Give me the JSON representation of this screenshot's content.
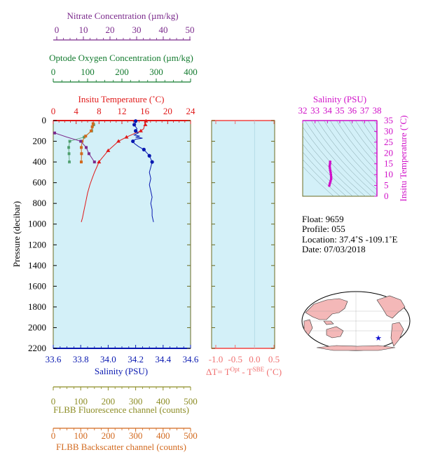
{
  "colors": {
    "nitrate": "#7b2a8c",
    "oxygen": "#127a2e",
    "temperature": "#e01818",
    "salinity": "#0818b0",
    "fluorescence": "#8c8c24",
    "backscatter": "#d2691e",
    "plot_bg": "#d3f0f8",
    "magenta": "#d010c8",
    "dt_axis": "#f07070"
  },
  "nitrate_axis": {
    "title": "Nitrate Concentration (µm/kg)",
    "ticks": [
      "0",
      "10",
      "20",
      "30",
      "40",
      "50"
    ]
  },
  "oxygen_axis": {
    "title": "Optode Oxygen Concentration (µm/kg)",
    "ticks": [
      "0",
      "100",
      "200",
      "300",
      "400"
    ]
  },
  "temperature_axis": {
    "title": "Insitu Temperature (˚C)",
    "ticks": [
      "0",
      "4",
      "8",
      "12",
      "16",
      "20",
      "24"
    ]
  },
  "salinity_axis": {
    "title": "Salinity (PSU)",
    "ticks": [
      "33.6",
      "33.8",
      "34.0",
      "34.2",
      "34.4",
      "34.6"
    ]
  },
  "pressure_axis": {
    "title": "Pressure (decibar)",
    "ticks": [
      "0",
      "200",
      "400",
      "600",
      "800",
      "1000",
      "1200",
      "1400",
      "1600",
      "1800",
      "2000",
      "2200"
    ]
  },
  "fluorescence_axis": {
    "title": "FLBB Fluorescence channel (counts)",
    "ticks": [
      "0",
      "100",
      "200",
      "300",
      "400",
      "500"
    ]
  },
  "backscatter_axis": {
    "title": "FLBB Backscatter channel (counts)",
    "ticks": [
      "0",
      "100",
      "200",
      "300",
      "400",
      "500"
    ]
  },
  "dt_axis": {
    "title_main": "ΔT= T",
    "sup1": "Opt",
    "title_mid": " - T",
    "sup2": "SBE",
    "title_end": " (˚C)",
    "ticks": [
      "-1.0",
      "-0.5",
      "0.0",
      "0.5"
    ]
  },
  "ts_axis": {
    "x_title": "Salinity (PSU)",
    "x_ticks": [
      "32",
      "33",
      "34",
      "35",
      "36",
      "37",
      "38"
    ],
    "y_title": "Insitu Temperature (˚C)",
    "y_ticks": [
      "0",
      "5",
      "10",
      "15",
      "20",
      "25",
      "30",
      "35"
    ]
  },
  "info": {
    "float": "Float:  9659",
    "profile": "Profile:  055",
    "location": "Location:  37.4˚S  -109.1˚E",
    "date": "Date:  07/03/2018"
  },
  "chart_data": [
    {
      "type": "line",
      "name": "profile",
      "y_axis": "Pressure (decibar)",
      "ylim": [
        2200,
        0
      ],
      "series": [
        {
          "name": "Temperature",
          "axis": "Insitu Temperature (˚C)",
          "xlim": [
            0,
            24
          ],
          "points": [
            [
              16.2,
              5
            ],
            [
              16.1,
              20
            ],
            [
              16.0,
              40
            ],
            [
              15.9,
              60
            ],
            [
              15.8,
              80
            ],
            [
              15.3,
              100
            ],
            [
              14.4,
              120
            ],
            [
              13.6,
              140
            ],
            [
              12.8,
              160
            ],
            [
              12.1,
              180
            ],
            [
              11.4,
              200
            ],
            [
              10.8,
              230
            ],
            [
              10.2,
              260
            ],
            [
              9.6,
              290
            ],
            [
              9.0,
              330
            ],
            [
              8.4,
              370
            ],
            [
              8.0,
              400
            ],
            [
              7.6,
              450
            ],
            [
              7.2,
              500
            ],
            [
              6.8,
              560
            ],
            [
              6.4,
              620
            ],
            [
              6.0,
              700
            ],
            [
              5.7,
              780
            ],
            [
              5.4,
              860
            ],
            [
              5.1,
              940
            ],
            [
              4.9,
              980
            ]
          ],
          "markers": [
            [
              16.2,
              5
            ],
            [
              16.1,
              40
            ],
            [
              15.3,
              100
            ],
            [
              12.8,
              160
            ],
            [
              11.4,
              200
            ],
            [
              9.6,
              290
            ],
            [
              8.0,
              400
            ]
          ]
        },
        {
          "name": "Salinity",
          "axis": "Salinity (PSU)",
          "xlim": [
            33.6,
            34.6
          ],
          "points": [
            [
              34.21,
              5
            ],
            [
              34.2,
              20
            ],
            [
              34.19,
              40
            ],
            [
              34.2,
              60
            ],
            [
              34.21,
              80
            ],
            [
              34.2,
              100
            ],
            [
              34.22,
              120
            ],
            [
              34.19,
              140
            ],
            [
              34.23,
              150
            ],
            [
              34.2,
              160
            ],
            [
              34.25,
              170
            ],
            [
              34.2,
              180
            ],
            [
              34.18,
              200
            ],
            [
              34.19,
              220
            ],
            [
              34.22,
              250
            ],
            [
              34.26,
              280
            ],
            [
              34.28,
              310
            ],
            [
              34.3,
              340
            ],
            [
              34.31,
              370
            ],
            [
              34.32,
              400
            ],
            [
              34.31,
              450
            ],
            [
              34.3,
              500
            ],
            [
              34.31,
              560
            ],
            [
              34.3,
              620
            ],
            [
              34.31,
              680
            ],
            [
              34.32,
              740
            ],
            [
              34.31,
              800
            ],
            [
              34.32,
              860
            ],
            [
              34.32,
              920
            ],
            [
              34.33,
              980
            ]
          ],
          "markers": [
            [
              34.2,
              5
            ],
            [
              34.19,
              40
            ],
            [
              34.2,
              100
            ],
            [
              34.18,
              200
            ],
            [
              34.26,
              280
            ],
            [
              34.3,
              340
            ],
            [
              34.32,
              400
            ]
          ]
        },
        {
          "name": "Nitrate",
          "axis": "Nitrate Concentration (µm/kg)",
          "xlim": [
            0,
            50
          ],
          "points": [
            [
              0.5,
              120
            ],
            [
              5,
              160
            ],
            [
              10,
              200
            ],
            [
              12,
              260
            ],
            [
              13,
              320
            ],
            [
              15,
              400
            ]
          ],
          "markers": [
            [
              0.5,
              120
            ],
            [
              10,
              200
            ],
            [
              12,
              260
            ],
            [
              13,
              320
            ],
            [
              15,
              400
            ]
          ]
        },
        {
          "name": "Oxygen",
          "axis": "Optode Oxygen Concentration (µm/kg)",
          "xlim": [
            0,
            400
          ],
          "points": [
            [
              118,
              40
            ],
            [
              117,
              60
            ],
            [
              112,
              100
            ],
            [
              90,
              160
            ],
            [
              48,
              200
            ],
            [
              45,
              260
            ],
            [
              46,
              320
            ],
            [
              47,
              400
            ]
          ],
          "markers": [
            [
              118,
              40
            ],
            [
              112,
              100
            ],
            [
              90,
              160
            ],
            [
              48,
              200
            ],
            [
              45,
              260
            ],
            [
              46,
              320
            ],
            [
              47,
              400
            ]
          ]
        },
        {
          "name": "Backscatter",
          "axis": "FLBB Backscatter channel (counts)",
          "xlim": [
            0,
            500
          ],
          "points": [
            [
              145,
              30
            ],
            [
              142,
              60
            ],
            [
              138,
              100
            ],
            [
              118,
              150
            ],
            [
              105,
              200
            ],
            [
              102,
              260
            ],
            [
              103,
              320
            ],
            [
              102,
              400
            ]
          ],
          "markers": [
            [
              145,
              30
            ],
            [
              142,
              60
            ],
            [
              138,
              100
            ],
            [
              118,
              150
            ],
            [
              105,
              200
            ],
            [
              102,
              260
            ],
            [
              103,
              320
            ],
            [
              102,
              400
            ]
          ]
        }
      ]
    },
    {
      "type": "scatter",
      "name": "T-S diagram",
      "x_axis": "Salinity (PSU)",
      "xlim": [
        32,
        38
      ],
      "y_axis": "Insitu Temperature (˚C)",
      "ylim": [
        0,
        35
      ],
      "points": [
        [
          34.15,
          4.9
        ],
        [
          34.2,
          6
        ],
        [
          34.25,
          7
        ],
        [
          34.3,
          8
        ],
        [
          34.3,
          9
        ],
        [
          34.28,
          10
        ],
        [
          34.26,
          11
        ],
        [
          34.22,
          12
        ],
        [
          34.2,
          13
        ],
        [
          34.18,
          14
        ],
        [
          34.21,
          15
        ],
        [
          34.22,
          16
        ]
      ]
    }
  ]
}
